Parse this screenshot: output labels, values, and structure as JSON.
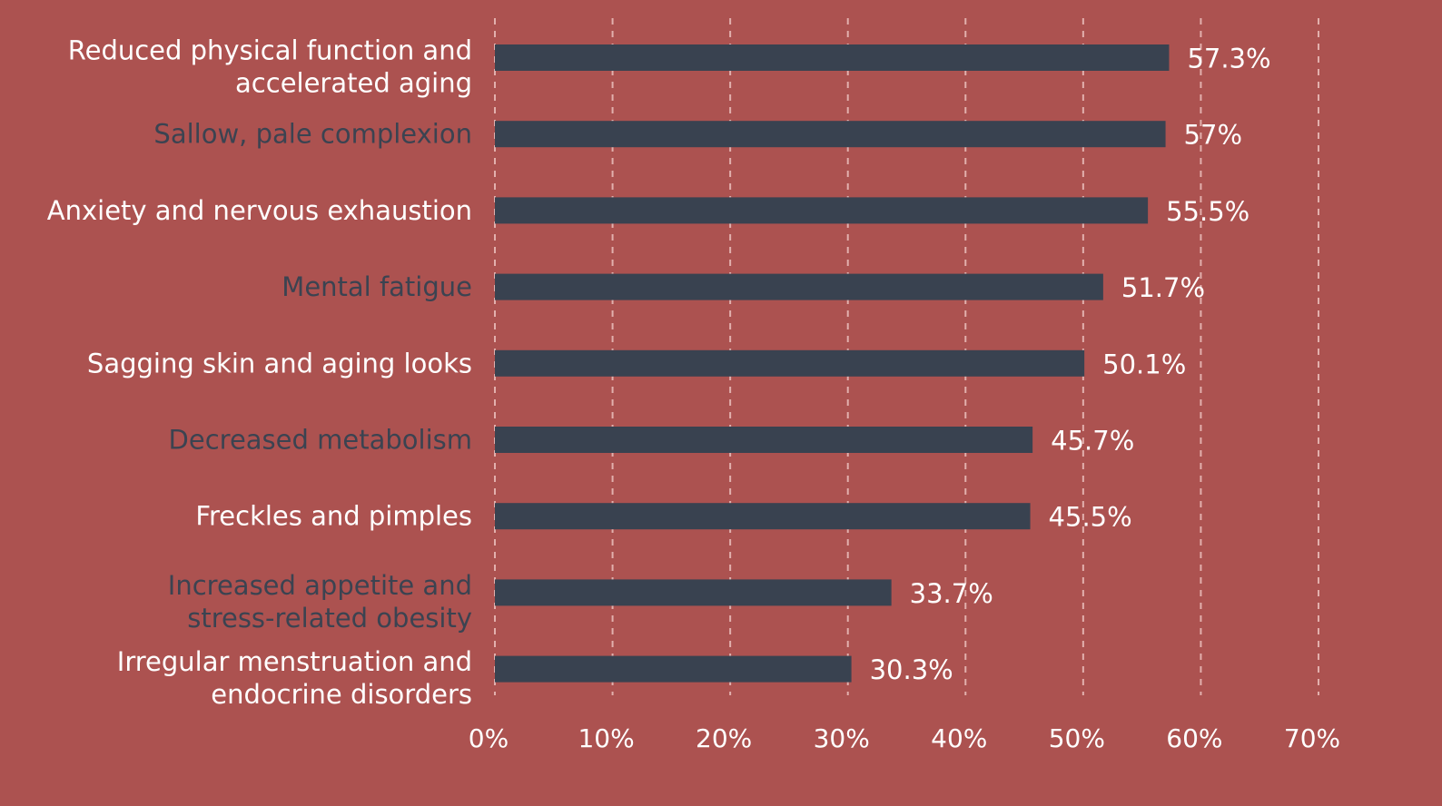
{
  "chart_data": {
    "type": "bar",
    "orientation": "horizontal",
    "categories": [
      [
        "Reduced physical function and",
        "accelerated aging"
      ],
      [
        "Sallow, pale complexion"
      ],
      [
        "Anxiety and nervous exhaustion"
      ],
      [
        "Mental fatigue"
      ],
      [
        "Sagging skin and aging looks"
      ],
      [
        "Decreased metabolism"
      ],
      [
        "Freckles and pimples"
      ],
      [
        "Increased appetite and",
        "stress-related obesity"
      ],
      [
        "Irregular menstruation and",
        "endocrine disorders"
      ]
    ],
    "values": [
      57.3,
      57,
      55.5,
      51.7,
      50.1,
      45.7,
      45.5,
      33.7,
      30.3
    ],
    "value_labels": [
      "57.3%",
      "57%",
      "55.5%",
      "51.7%",
      "50.1%",
      "45.7%",
      "45.5%",
      "33.7%",
      "30.3%"
    ],
    "x_ticks": [
      "0%",
      "10%",
      "20%",
      "30%",
      "40%",
      "50%",
      "60%",
      "70%"
    ],
    "xlim": [
      0,
      70
    ],
    "grid": true,
    "category_label_colors": [
      "#ffffff",
      "#3b4351",
      "#ffffff",
      "#3b4351",
      "#ffffff",
      "#3b4351",
      "#ffffff",
      "#3b4351",
      "#ffffff"
    ],
    "bar_color": "#394250",
    "background_color": "#ac5250",
    "title": "",
    "xlabel": "",
    "ylabel": ""
  }
}
